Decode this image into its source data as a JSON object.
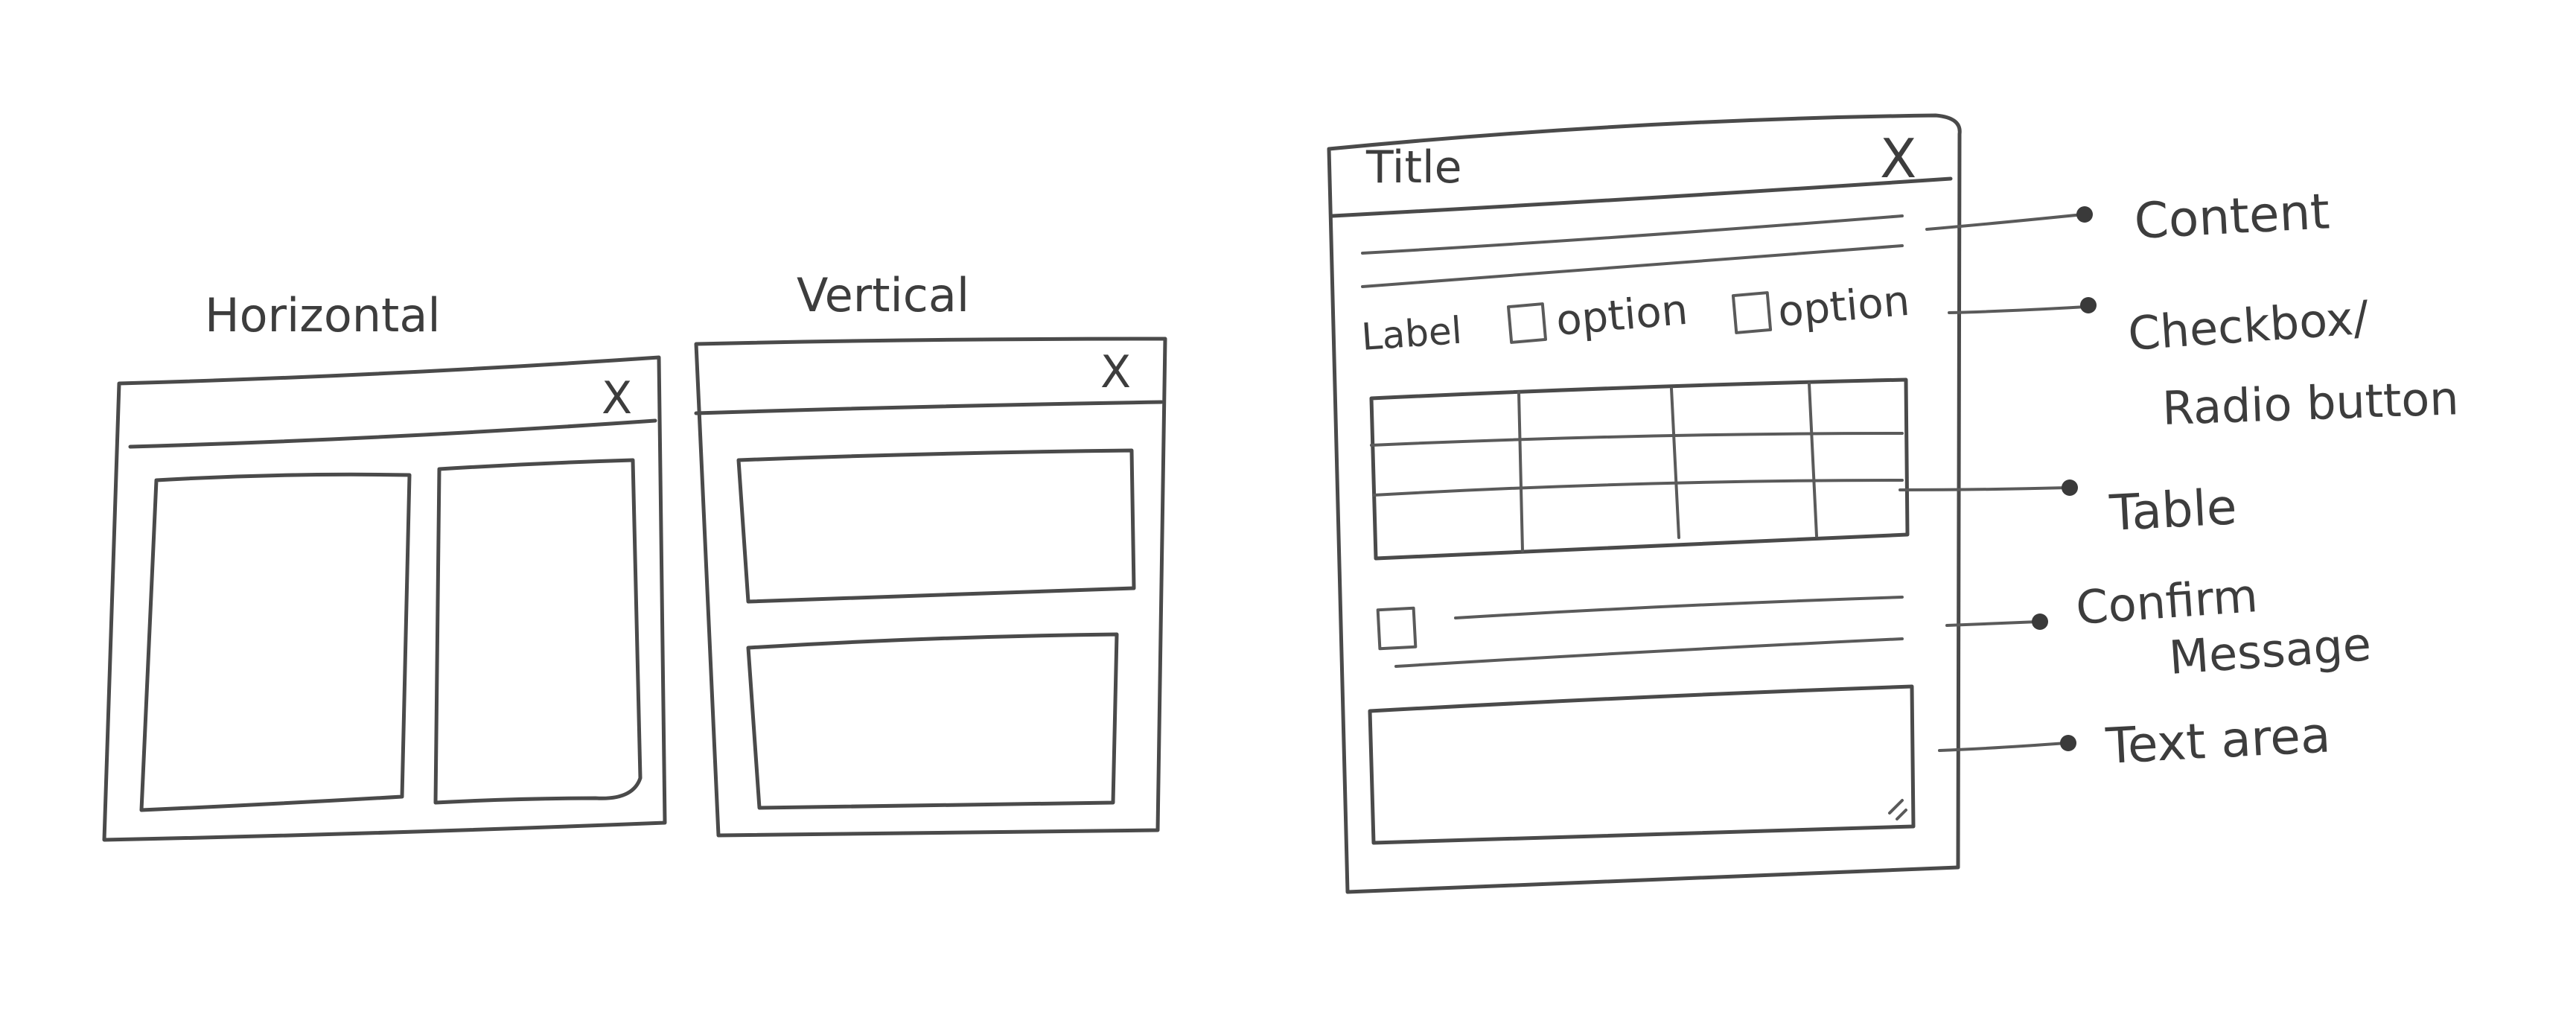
{
  "labels": {
    "horizontal": "Horizontal",
    "vertical": "Vertical"
  },
  "dialog": {
    "title": "Title",
    "close": "X",
    "field_label": "Label",
    "option_1": "option",
    "option_2": "option"
  },
  "windows": {
    "close": "X"
  },
  "callouts": {
    "content": "Content",
    "checkbox_1": "Checkbox/",
    "checkbox_2": "Radio button",
    "table": "Table",
    "confirm_1": "Confirm",
    "confirm_2": "Message",
    "textarea": "Text area"
  },
  "colors": {
    "pencil": "#4a4a4a",
    "background": "#ffffff"
  }
}
